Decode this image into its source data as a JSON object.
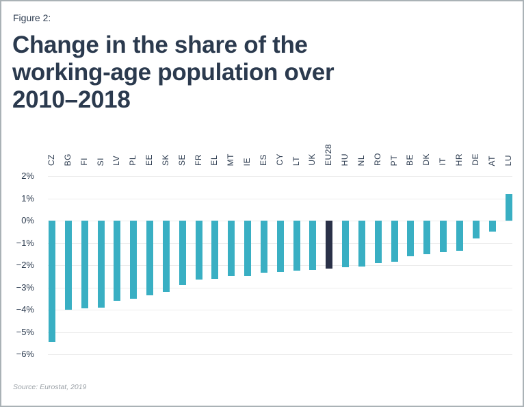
{
  "figure_label": "Figure 2:",
  "title_lines": [
    "Change in the share of the",
    "working-age population over",
    "2010–2018"
  ],
  "source": "Source: Eurostat, 2019",
  "colors": {
    "bar": "#39afc3",
    "bar_highlight": "#2a3148",
    "grid": "#ececec",
    "axis_text": "#2b3a4e",
    "title_text": "#2b3a4e",
    "source_text": "#9aa0a6"
  },
  "chart_data": {
    "type": "bar",
    "title": "Change in the share of the working-age population over 2010–2018",
    "xlabel": "",
    "ylabel": "",
    "unit": "%",
    "categories": [
      "CZ",
      "BG",
      "FI",
      "SI",
      "LV",
      "PL",
      "EE",
      "SK",
      "SE",
      "FR",
      "EL",
      "MT",
      "IE",
      "ES",
      "CY",
      "LT",
      "UK",
      "EU28",
      "HU",
      "NL",
      "RO",
      "PT",
      "BE",
      "DK",
      "IT",
      "HR",
      "DE",
      "AT",
      "LU"
    ],
    "values": [
      -5.45,
      -4.0,
      -3.95,
      -3.9,
      -3.6,
      -3.5,
      -3.35,
      -3.2,
      -2.9,
      -2.65,
      -2.6,
      -2.5,
      -2.5,
      -2.35,
      -2.3,
      -2.25,
      -2.2,
      -2.15,
      -2.1,
      -2.05,
      -1.9,
      -1.85,
      -1.6,
      -1.5,
      -1.4,
      -1.35,
      -0.8,
      -0.5,
      1.2
    ],
    "highlight_category": "EU28",
    "ylim": [
      -6,
      2
    ],
    "yticks": [
      2,
      1,
      0,
      -1,
      -2,
      -3,
      -4,
      -5,
      -6
    ],
    "ytick_labels": [
      "2%",
      "1%",
      "0%",
      "−1%",
      "−2%",
      "−3%",
      "−4%",
      "−5%",
      "−6%"
    ],
    "grid": true,
    "legend_position": "none",
    "x_labels_position": "top"
  }
}
